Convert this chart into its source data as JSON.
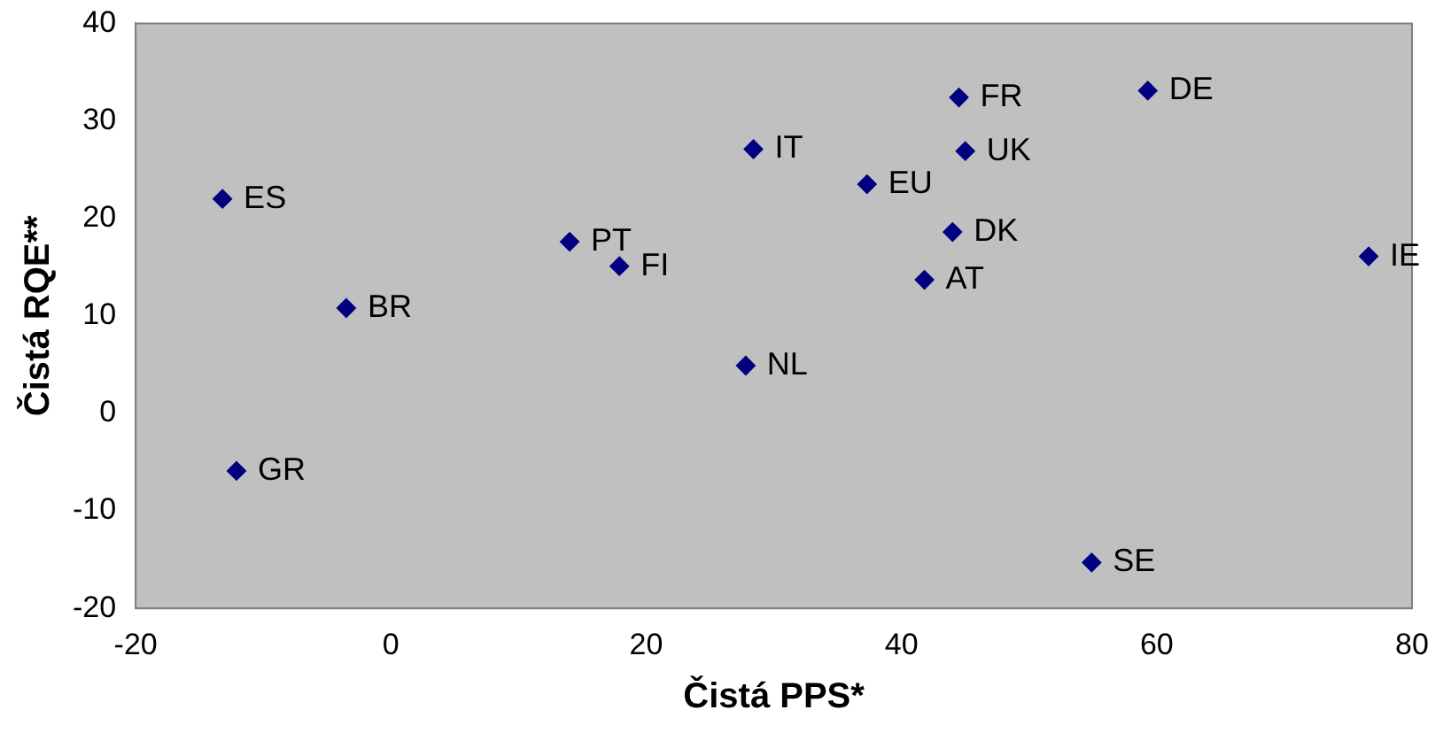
{
  "chart_data": {
    "type": "scatter",
    "xlabel": "Čistá PPS*",
    "ylabel": "Čistá RQE**",
    "series": [
      {
        "color": "#000080",
        "x": [
          -13.2,
          -3.5,
          -12.1,
          14.0,
          17.9,
          28.4,
          27.8,
          37.3,
          44.5,
          45.0,
          44.0,
          41.8,
          59.3,
          76.6,
          54.9
        ],
        "values": [
          22.0,
          10.8,
          -5.9,
          17.6,
          15.1,
          27.1,
          4.9,
          23.5,
          32.4,
          26.9,
          18.6,
          13.7,
          33.1,
          16.1,
          -15.3
        ]
      }
    ],
    "annotations": [
      {
        "text": "ES",
        "x": -13.2,
        "y": 22.0
      },
      {
        "text": "BR",
        "x": -3.5,
        "y": 10.8
      },
      {
        "text": "GR",
        "x": -12.1,
        "y": -5.9
      },
      {
        "text": "PT",
        "x": 14.0,
        "y": 17.6
      },
      {
        "text": "FI",
        "x": 17.9,
        "y": 15.1
      },
      {
        "text": "IT",
        "x": 28.4,
        "y": 27.1
      },
      {
        "text": "NL",
        "x": 27.8,
        "y": 4.9
      },
      {
        "text": "EU",
        "x": 37.3,
        "y": 23.5
      },
      {
        "text": "FR",
        "x": 44.5,
        "y": 32.4
      },
      {
        "text": "UK",
        "x": 45.0,
        "y": 26.9
      },
      {
        "text": "DK",
        "x": 44.0,
        "y": 18.6
      },
      {
        "text": "AT",
        "x": 41.8,
        "y": 13.7
      },
      {
        "text": "DE",
        "x": 59.3,
        "y": 33.1
      },
      {
        "text": "IE",
        "x": 76.6,
        "y": 16.1
      },
      {
        "text": "SE",
        "x": 54.9,
        "y": -15.3
      }
    ],
    "xlim": [
      -20,
      80
    ],
    "xticks": [
      -20,
      0,
      20,
      40,
      60,
      80
    ],
    "ylim": [
      -20,
      40
    ],
    "yticks": [
      -20,
      -10,
      0,
      10,
      20,
      30,
      40
    ],
    "grid": false,
    "legend": false,
    "marker": "diamond"
  }
}
